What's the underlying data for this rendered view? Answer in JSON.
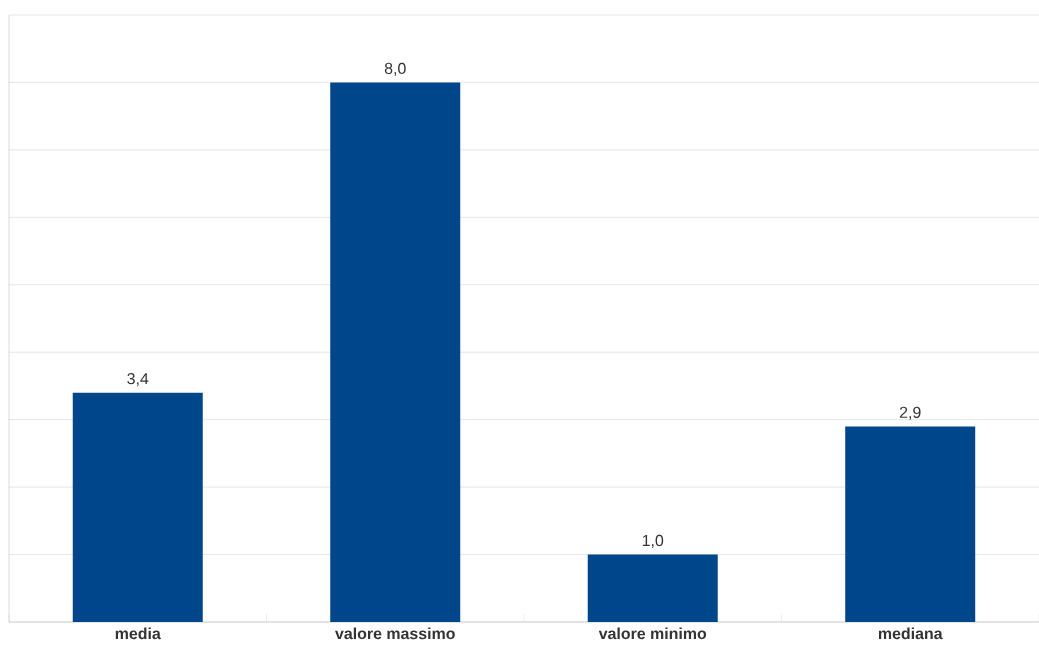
{
  "chart_data": {
    "type": "bar",
    "categories": [
      "media",
      "valore massimo",
      "valore minimo",
      "mediana"
    ],
    "values": [
      3.4,
      8.0,
      1.0,
      2.9
    ],
    "value_labels": [
      "3,4",
      "8,0",
      "1,0",
      "2,9"
    ],
    "color": "#00468b",
    "ylim": [
      0,
      9
    ],
    "yticks": [
      {
        "value": 0,
        "label": null
      },
      {
        "value": 1,
        "label": null
      },
      {
        "value": 2,
        "label": null
      },
      {
        "value": 3,
        "label": null
      },
      {
        "value": 4,
        "label": null
      },
      {
        "value": 5,
        "label": null
      },
      {
        "value": 6,
        "label": null
      },
      {
        "value": 7,
        "label": null
      },
      {
        "value": 8,
        "label": null
      },
      {
        "value": 9,
        "label": null
      }
    ],
    "grid": "y",
    "tick_labels": "x"
  }
}
